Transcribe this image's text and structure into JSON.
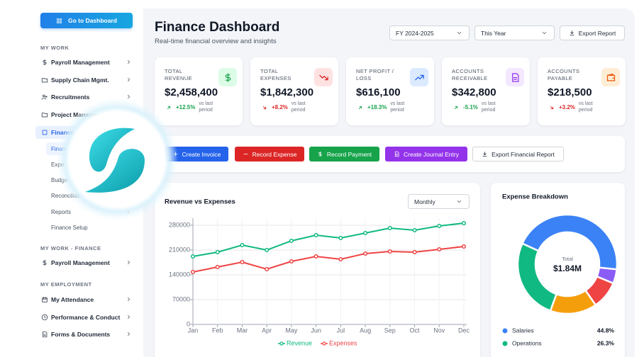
{
  "sidebar": {
    "dashboard_button": "Go to Dashboard",
    "sections": [
      {
        "title": "MY WORK",
        "items": [
          {
            "label": "Payroll Management",
            "expandable": true
          },
          {
            "label": "Supply Chain Mgmt.",
            "expandable": true
          },
          {
            "label": "Recruitments",
            "expandable": true
          },
          {
            "label": "Project Management",
            "expandable": true
          },
          {
            "label": "Finance",
            "expandable": true,
            "active": true,
            "children": [
              {
                "label": "Finan",
                "active": true
              },
              {
                "label": "Expe"
              },
              {
                "label": "Budge"
              },
              {
                "label": "Reconciliati"
              },
              {
                "label": "Reports",
                "expandable": true
              },
              {
                "label": "Finance Setup"
              }
            ]
          }
        ]
      },
      {
        "title": "MY WORK - FINANCE",
        "items": [
          {
            "label": "Payroll Management",
            "expandable": true
          }
        ]
      },
      {
        "title": "MY EMPLOYMENT",
        "items": [
          {
            "label": "My Attendance",
            "expandable": true
          },
          {
            "label": "Performance & Conduct",
            "expandable": true
          },
          {
            "label": "Forms & Documents",
            "expandable": true
          }
        ]
      }
    ]
  },
  "header": {
    "title": "Finance Dashboard",
    "subtitle": "Real-time financial overview and insights",
    "fiscal_year": "FY 2024-2025",
    "period": "This Year",
    "export_button": "Export Report"
  },
  "kpis": [
    {
      "label": "TOTAL REVENUE",
      "value": "$2,458,400",
      "change": "+12.5%",
      "comparison": "vs last period",
      "trend": "up",
      "change_color": "#16a34a",
      "icon_color": "#16a34a",
      "icon_bg": "#dcfce7"
    },
    {
      "label": "TOTAL EXPENSES",
      "value": "$1,842,300",
      "change": "+8.2%",
      "comparison": "vs last period",
      "trend": "down",
      "change_color": "#dc2626",
      "icon_color": "#dc2626",
      "icon_bg": "#fee2e2"
    },
    {
      "label": "NET PROFIT / LOSS",
      "value": "$616,100",
      "change": "+18.3%",
      "comparison": "vs last period",
      "trend": "up",
      "change_color": "#16a34a",
      "icon_color": "#2563eb",
      "icon_bg": "#dbeafe"
    },
    {
      "label": "ACCOUNTS RECEIVABLE",
      "value": "$342,800",
      "change": "-5.1%",
      "comparison": "vs last period",
      "trend": "up",
      "change_color": "#16a34a",
      "icon_color": "#9333ea",
      "icon_bg": "#f3e8ff"
    },
    {
      "label": "ACCOUNTS PAYABLE",
      "value": "$218,500",
      "change": "+3.2%",
      "comparison": "vs last period",
      "trend": "down",
      "change_color": "#dc2626",
      "icon_color": "#ea580c",
      "icon_bg": "#ffedd5"
    }
  ],
  "actions": [
    {
      "label": "Create Invoice",
      "color": "#2563eb"
    },
    {
      "label": "Record Expense",
      "color": "#dc2626"
    },
    {
      "label": "Record Payment",
      "color": "#16a34a"
    },
    {
      "label": "Create Journal Entry",
      "color": "#9333ea"
    },
    {
      "label": "Export Financial Report",
      "color": "#ffffff"
    }
  ],
  "revenue_chart_period": "Monthly",
  "chart_data": [
    {
      "type": "line",
      "title": "Revenue vs Expenses",
      "categories": [
        "Jan",
        "Feb",
        "Mar",
        "Apr",
        "May",
        "Jun",
        "Jul",
        "Aug",
        "Sep",
        "Oct",
        "Nov",
        "Dec"
      ],
      "series": [
        {
          "name": "Revenue",
          "color": "#10b981",
          "values": [
            192000,
            204000,
            224000,
            210000,
            236000,
            252000,
            244000,
            258000,
            272000,
            266000,
            278000,
            286000
          ]
        },
        {
          "name": "Expenses",
          "color": "#ef4444",
          "values": [
            148000,
            162000,
            176000,
            156000,
            178000,
            192000,
            184000,
            200000,
            206000,
            204000,
            212000,
            220000
          ]
        }
      ],
      "ylim": [
        0,
        300000
      ],
      "yticks": [
        0,
        70000,
        140000,
        210000,
        280000
      ],
      "grid": true,
      "legend": "bottom"
    },
    {
      "type": "pie",
      "title": "Expense Breakdown",
      "center_label": "Total",
      "center_value": "$1.84M",
      "categories": [
        "Salaries",
        "Operations",
        null,
        null,
        null
      ],
      "values": [
        44.8,
        26.3,
        15.2,
        9.1,
        4.6
      ],
      "value_labels": [
        "44.8%",
        "26.3%",
        null,
        null,
        null
      ],
      "colors": [
        "#3b82f6",
        "#10b981",
        "#f59e0b",
        "#ef4444",
        "#8b5cf6"
      ]
    }
  ]
}
